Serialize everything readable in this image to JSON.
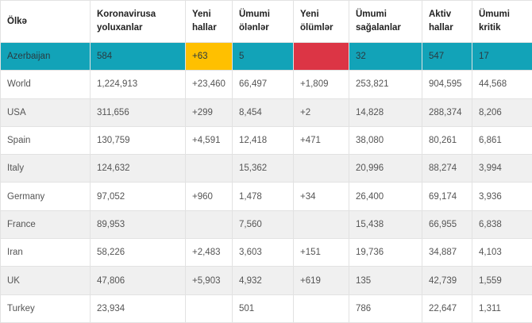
{
  "table": {
    "headers": [
      "Ölkə",
      "Koronavirusa yoluxanlar",
      "Yeni hallar",
      "Ümumi ölənlər",
      "Yeni ölümlər",
      "Ümumi sağalanlar",
      "Aktiv hallar",
      "Ümumi kritik"
    ],
    "rows": [
      [
        "Azerbaijan",
        "584",
        "+63",
        "5",
        "",
        "32",
        "547",
        "17"
      ],
      [
        "World",
        "1,224,913",
        "+23,460",
        "66,497",
        "+1,809",
        "253,821",
        "904,595",
        "44,568"
      ],
      [
        "USA",
        "311,656",
        "+299",
        "8,454",
        "+2",
        "14,828",
        "288,374",
        "8,206"
      ],
      [
        "Spain",
        "130,759",
        "+4,591",
        "12,418",
        "+471",
        "38,080",
        "80,261",
        "6,861"
      ],
      [
        "Italy",
        "124,632",
        "",
        "15,362",
        "",
        "20,996",
        "88,274",
        "3,994"
      ],
      [
        "Germany",
        "97,052",
        "+960",
        "1,478",
        "+34",
        "26,400",
        "69,174",
        "3,936"
      ],
      [
        "France",
        "89,953",
        "",
        "7,560",
        "",
        "15,438",
        "66,955",
        "6,838"
      ],
      [
        "Iran",
        "58,226",
        "+2,483",
        "3,603",
        "+151",
        "19,736",
        "34,887",
        "4,103"
      ],
      [
        "UK",
        "47,806",
        "+5,903",
        "4,932",
        "+619",
        "135",
        "42,739",
        "1,559"
      ],
      [
        "Turkey",
        "23,934",
        "",
        "501",
        "",
        "786",
        "22,647",
        "1,311"
      ]
    ]
  },
  "colors": {
    "highlight_row": "#12a3b8",
    "new_cases": "#ffc000",
    "new_deaths": "#dc3545",
    "recovered": "#28a745"
  }
}
